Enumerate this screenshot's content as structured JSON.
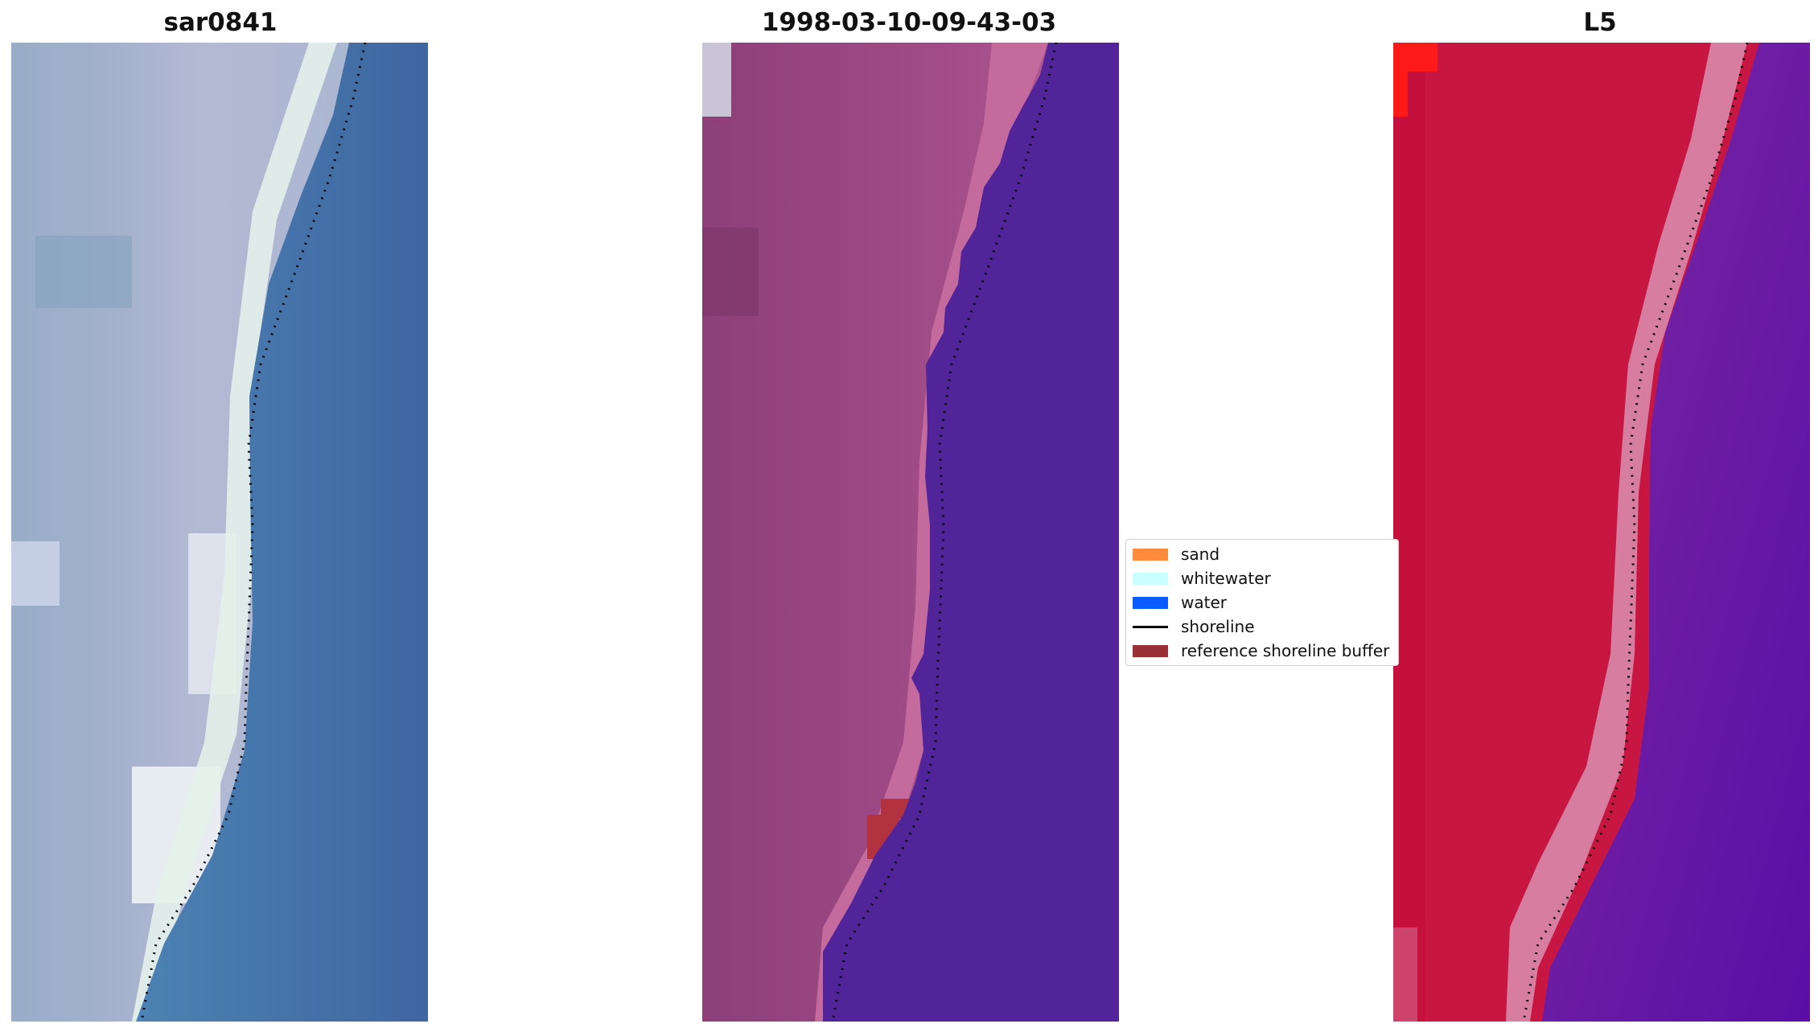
{
  "panels": [
    {
      "title": "sar0841",
      "image_desc": "rgb-composite"
    },
    {
      "title": "1998-03-10-09-43-03",
      "image_desc": "classified-composite"
    },
    {
      "title": "L5",
      "image_desc": "index-map"
    }
  ],
  "legend": {
    "items": [
      {
        "label": "sand",
        "color": "#ff8c3c",
        "kind": "patch"
      },
      {
        "label": "whitewater",
        "color": "#c8ffff",
        "kind": "patch"
      },
      {
        "label": "water",
        "color": "#0a5cff",
        "kind": "patch"
      },
      {
        "label": "shoreline",
        "color": "#000000",
        "kind": "line"
      },
      {
        "label": "reference shoreline buffer",
        "color": "#9b2f36",
        "kind": "patch"
      }
    ]
  },
  "colors": {
    "rgb_land": "#a9b2cc",
    "rgb_white": "#e8f2ee",
    "rgb_water": "#4a7fb0",
    "classified_land": "#9b4a82",
    "classified_beach": "#c56a9d",
    "classified_water": "#52249a",
    "classified_buffer": "#b3323f",
    "index_land": "#c5103e",
    "index_beach": "#d77ea0",
    "index_water": "#6f1fa0",
    "index_hot": "#ff1a1a"
  }
}
